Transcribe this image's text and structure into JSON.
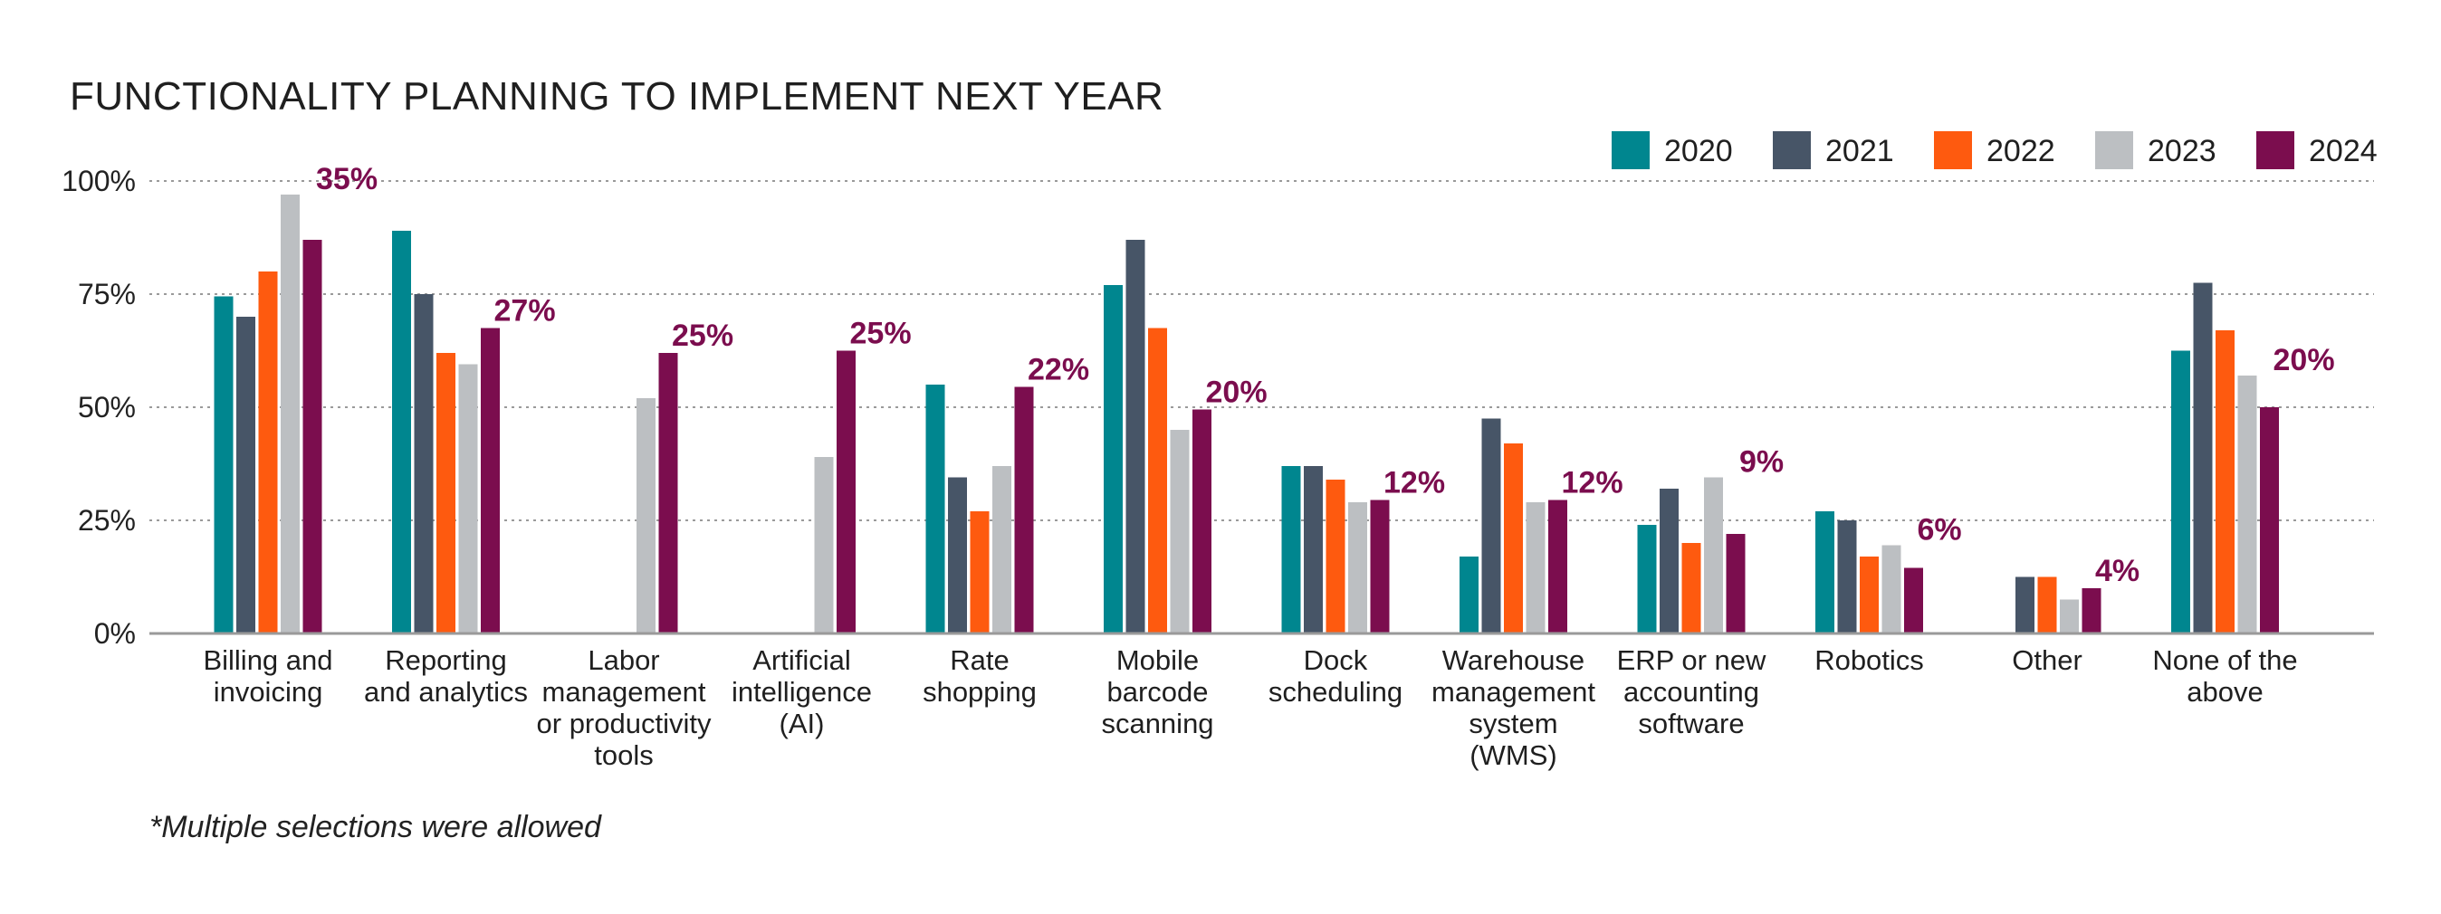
{
  "chart_data": {
    "type": "bar",
    "title": "FUNCTIONALITY PLANNING TO IMPLEMENT NEXT YEAR",
    "footnote": "*Multiple selections were allowed",
    "xlabel": "",
    "ylabel": "",
    "ylim": [
      0,
      100
    ],
    "yticks": [
      "0%",
      "25%",
      "50%",
      "75%",
      "100%"
    ],
    "legend_position": "top-right",
    "grid": true,
    "categories": [
      [
        "Billing and",
        "invoicing"
      ],
      [
        "Reporting",
        "and analytics"
      ],
      [
        "Labor",
        "management",
        "or productivity",
        "tools"
      ],
      [
        "Artificial",
        "intelligence",
        "(AI)"
      ],
      [
        "Rate",
        "shopping"
      ],
      [
        "Mobile",
        "barcode",
        "scanning"
      ],
      [
        "Dock",
        "scheduling"
      ],
      [
        "Warehouse",
        "management",
        "system",
        "(WMS)"
      ],
      [
        "ERP or new",
        "accounting",
        "software"
      ],
      [
        "Robotics"
      ],
      [
        "Other"
      ],
      [
        "None of the",
        "above"
      ]
    ],
    "series": [
      {
        "name": "2020",
        "color": "#00868f",
        "values": [
          74.5,
          89,
          null,
          null,
          55,
          77,
          37,
          17,
          24,
          27,
          null,
          62.5
        ]
      },
      {
        "name": "2021",
        "color": "#475567",
        "values": [
          70,
          75,
          null,
          null,
          34.5,
          87,
          37,
          47.5,
          32,
          25,
          12.5,
          77.5
        ]
      },
      {
        "name": "2022",
        "color": "#fe5a0f",
        "values": [
          80,
          62,
          null,
          null,
          27,
          67.5,
          34,
          42,
          20,
          17,
          12.5,
          67
        ]
      },
      {
        "name": "2023",
        "color": "#bcbfc2",
        "values": [
          97,
          59.5,
          52,
          39,
          37,
          45,
          29,
          29,
          34.5,
          19.5,
          7.5,
          57
        ]
      },
      {
        "name": "2024",
        "color": "#7b0d4e",
        "values": [
          87,
          67.5,
          62,
          62.5,
          54.5,
          49.5,
          29.5,
          29.5,
          22,
          14.5,
          10,
          50
        ]
      }
    ],
    "annotations": [
      "35%",
      "27%",
      "25%",
      "25%",
      "22%",
      "20%",
      "12%",
      "12%",
      "9%",
      "6%",
      "4%",
      "20%"
    ],
    "annotation_color": "#7b0d4e"
  }
}
